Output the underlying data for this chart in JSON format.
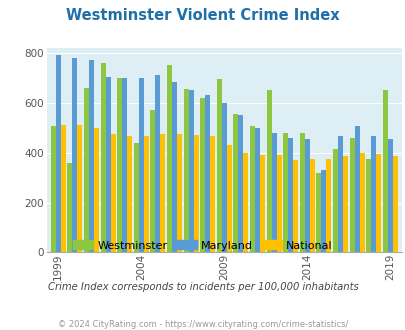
{
  "title": "Westminster Violent Crime Index",
  "subtitle": "Crime Index corresponds to incidents per 100,000 inhabitants",
  "footer": "© 2024 CityRating.com - https://www.cityrating.com/crime-statistics/",
  "years": [
    1999,
    2000,
    2001,
    2002,
    2003,
    2004,
    2005,
    2006,
    2007,
    2008,
    2009,
    2010,
    2011,
    2012,
    2013,
    2014,
    2015,
    2016,
    2017,
    2018,
    2019
  ],
  "westminster": [
    505,
    360,
    660,
    760,
    700,
    440,
    570,
    750,
    655,
    620,
    695,
    555,
    505,
    650,
    480,
    480,
    320,
    415,
    460,
    375,
    650
  ],
  "maryland": [
    790,
    780,
    770,
    705,
    700,
    700,
    710,
    685,
    650,
    630,
    600,
    550,
    500,
    480,
    460,
    455,
    330,
    465,
    505,
    465,
    455
  ],
  "national": [
    510,
    510,
    500,
    475,
    465,
    465,
    475,
    475,
    470,
    465,
    430,
    400,
    390,
    390,
    370,
    375,
    375,
    385,
    400,
    395,
    385
  ],
  "westminster_color": "#8dc63f",
  "maryland_color": "#5b9bd5",
  "national_color": "#ffc000",
  "bg_color": "#ddeef5",
  "ylim": [
    0,
    820
  ],
  "yticks": [
    0,
    200,
    400,
    600,
    800
  ],
  "xlabel_ticks": [
    1999,
    2004,
    2009,
    2014,
    2019
  ],
  "title_color": "#1f6fa8",
  "subtitle_color": "#444444",
  "footer_color": "#999999"
}
